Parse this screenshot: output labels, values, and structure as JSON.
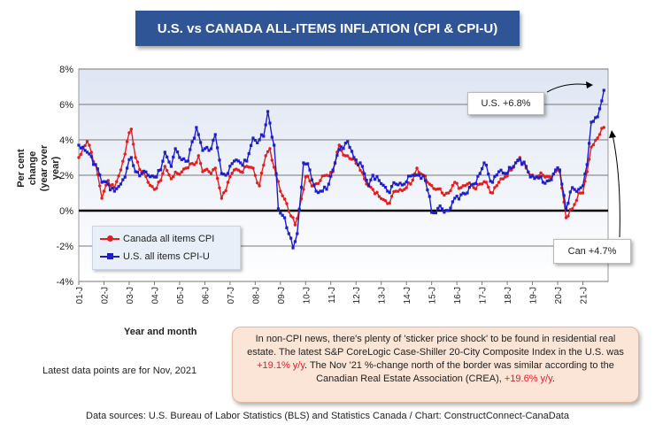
{
  "title": "U.S. vs CANADA ALL-ITEMS INFLATION (CPI & CPI-U)",
  "y_axis_title_line1": "Per cent change",
  "y_axis_title_line2": "(year over year)",
  "x_axis_title": "Year and month",
  "legend": {
    "canada": "Canada all items CPI",
    "us": "U.S. all items CPI-U"
  },
  "callouts": {
    "us": "U.S. +6.8%",
    "can": "Can +4.7%"
  },
  "note": {
    "part1": "In non-CPI news, there's plenty of 'sticker price shock' to be found in residential real estate. The latest S&P CoreLogic Case-Shiller 20-City Composite Index in the U.S. was ",
    "us_value": "+19.1% y/y",
    "part2": ". The Nov '21 %-change north of the border was similar according to the Canadian Real Estate Association (CREA), ",
    "can_value": "+19.6% y/y",
    "part3": "."
  },
  "latest_text": "Latest data points are for Nov, 2021",
  "sources": "Data sources: U.S. Bureau of Labor Statistics (BLS) and Statistics Canada / Chart: ConstructConnect-CanaData",
  "colors": {
    "canada": "#e02020",
    "us": "#1f1fc8",
    "title_bg": "#2f5597",
    "note_bg": "#fbe5d6"
  },
  "chart_data": {
    "type": "line",
    "title": "U.S. vs CANADA ALL-ITEMS INFLATION (CPI & CPI-U)",
    "xlabel": "Year and month",
    "ylabel": "Per cent change (year over year)",
    "ylim": [
      -4,
      8
    ],
    "y_ticks": [
      "-4%",
      "-2%",
      "0%",
      "2%",
      "4%",
      "6%",
      "8%"
    ],
    "y_tick_values": [
      -4,
      -2,
      0,
      2,
      4,
      6,
      8
    ],
    "x_tick_labels": [
      "01-J",
      "02-J",
      "03-J",
      "04-J",
      "05-J",
      "06-J",
      "07-J",
      "08-J",
      "09-J",
      "10-J",
      "11-J",
      "12-J",
      "13-J",
      "14-J",
      "15-J",
      "16-J",
      "17-J",
      "18-J",
      "19-J",
      "20-J",
      "21-J"
    ],
    "x_start": "2001-01",
    "x_end": "2021-11",
    "grid": true,
    "legend_position": "bottom-left",
    "series": [
      {
        "name": "Canada all items CPI",
        "color": "#e02020",
        "marker": "circle",
        "keypoints": [
          [
            "2001-01",
            3.0
          ],
          [
            "2001-05",
            3.9
          ],
          [
            "2001-09",
            2.6
          ],
          [
            "2001-12",
            0.7
          ],
          [
            "2002-03",
            1.7
          ],
          [
            "2002-06",
            1.3
          ],
          [
            "2002-09",
            2.3
          ],
          [
            "2002-12",
            3.9
          ],
          [
            "2003-02",
            4.6
          ],
          [
            "2003-04",
            3.0
          ],
          [
            "2003-07",
            2.2
          ],
          [
            "2003-10",
            1.6
          ],
          [
            "2004-01",
            1.2
          ],
          [
            "2004-04",
            1.7
          ],
          [
            "2004-06",
            2.5
          ],
          [
            "2004-09",
            1.8
          ],
          [
            "2004-12",
            2.1
          ],
          [
            "2005-04",
            2.4
          ],
          [
            "2005-08",
            2.6
          ],
          [
            "2005-10",
            3.1
          ],
          [
            "2005-12",
            2.2
          ],
          [
            "2006-03",
            2.2
          ],
          [
            "2006-06",
            2.4
          ],
          [
            "2006-09",
            0.7
          ],
          [
            "2006-12",
            1.6
          ],
          [
            "2007-03",
            2.3
          ],
          [
            "2007-06",
            2.2
          ],
          [
            "2007-09",
            2.5
          ],
          [
            "2007-12",
            2.4
          ],
          [
            "2008-03",
            1.4
          ],
          [
            "2008-06",
            3.1
          ],
          [
            "2008-08",
            3.5
          ],
          [
            "2008-11",
            2.0
          ],
          [
            "2009-01",
            1.1
          ],
          [
            "2009-04",
            0.4
          ],
          [
            "2009-06",
            -0.3
          ],
          [
            "2009-08",
            -0.8
          ],
          [
            "2009-10",
            0.1
          ],
          [
            "2010-01",
            1.9
          ],
          [
            "2010-05",
            1.4
          ],
          [
            "2010-08",
            1.7
          ],
          [
            "2010-11",
            2.0
          ],
          [
            "2011-02",
            2.2
          ],
          [
            "2011-05",
            3.7
          ],
          [
            "2011-08",
            3.1
          ],
          [
            "2011-11",
            2.9
          ],
          [
            "2012-02",
            2.6
          ],
          [
            "2012-06",
            1.5
          ],
          [
            "2012-09",
            1.2
          ],
          [
            "2012-12",
            0.8
          ],
          [
            "2013-04",
            0.4
          ],
          [
            "2013-08",
            1.1
          ],
          [
            "2013-12",
            1.2
          ],
          [
            "2014-03",
            1.5
          ],
          [
            "2014-06",
            2.4
          ],
          [
            "2014-09",
            2.0
          ],
          [
            "2014-12",
            1.5
          ],
          [
            "2015-03",
            1.2
          ],
          [
            "2015-06",
            1.0
          ],
          [
            "2015-09",
            1.0
          ],
          [
            "2015-12",
            1.6
          ],
          [
            "2016-03",
            1.3
          ],
          [
            "2016-06",
            1.5
          ],
          [
            "2016-09",
            1.3
          ],
          [
            "2016-12",
            1.5
          ],
          [
            "2017-03",
            1.6
          ],
          [
            "2017-06",
            1.0
          ],
          [
            "2017-09",
            1.6
          ],
          [
            "2017-12",
            1.9
          ],
          [
            "2018-03",
            2.3
          ],
          [
            "2018-07",
            3.0
          ],
          [
            "2018-10",
            2.4
          ],
          [
            "2018-12",
            2.0
          ],
          [
            "2019-03",
            1.9
          ],
          [
            "2019-06",
            2.0
          ],
          [
            "2019-09",
            1.9
          ],
          [
            "2019-12",
            2.2
          ],
          [
            "2020-02",
            2.2
          ],
          [
            "2020-05",
            -0.4
          ],
          [
            "2020-08",
            0.1
          ],
          [
            "2020-11",
            1.0
          ],
          [
            "2021-01",
            1.0
          ],
          [
            "2021-03",
            2.2
          ],
          [
            "2021-05",
            3.6
          ],
          [
            "2021-08",
            4.1
          ],
          [
            "2021-11",
            4.7
          ]
        ]
      },
      {
        "name": "U.S. all items CPI-U",
        "color": "#1f1fc8",
        "marker": "square",
        "keypoints": [
          [
            "2001-01",
            3.7
          ],
          [
            "2001-06",
            3.2
          ],
          [
            "2001-09",
            2.6
          ],
          [
            "2001-12",
            1.6
          ],
          [
            "2002-03",
            1.5
          ],
          [
            "2002-06",
            1.1
          ],
          [
            "2002-09",
            1.5
          ],
          [
            "2002-12",
            2.4
          ],
          [
            "2003-02",
            3.0
          ],
          [
            "2003-04",
            2.2
          ],
          [
            "2003-07",
            2.1
          ],
          [
            "2003-10",
            2.0
          ],
          [
            "2004-01",
            1.9
          ],
          [
            "2004-04",
            2.3
          ],
          [
            "2004-06",
            3.3
          ],
          [
            "2004-09",
            2.5
          ],
          [
            "2004-11",
            3.5
          ],
          [
            "2005-01",
            3.0
          ],
          [
            "2005-05",
            2.8
          ],
          [
            "2005-09",
            4.7
          ],
          [
            "2005-12",
            3.4
          ],
          [
            "2006-03",
            3.4
          ],
          [
            "2006-06",
            4.3
          ],
          [
            "2006-09",
            2.1
          ],
          [
            "2006-11",
            2.0
          ],
          [
            "2007-03",
            2.8
          ],
          [
            "2007-06",
            2.7
          ],
          [
            "2007-09",
            2.8
          ],
          [
            "2007-12",
            4.1
          ],
          [
            "2008-03",
            4.0
          ],
          [
            "2008-05",
            4.2
          ],
          [
            "2008-07",
            5.6
          ],
          [
            "2008-10",
            3.7
          ],
          [
            "2008-12",
            0.1
          ],
          [
            "2009-03",
            -0.4
          ],
          [
            "2009-05",
            -1.3
          ],
          [
            "2009-07",
            -2.1
          ],
          [
            "2009-09",
            -1.3
          ],
          [
            "2009-12",
            2.7
          ],
          [
            "2010-03",
            2.3
          ],
          [
            "2010-06",
            1.1
          ],
          [
            "2010-09",
            1.1
          ],
          [
            "2010-12",
            1.5
          ],
          [
            "2011-03",
            2.7
          ],
          [
            "2011-06",
            3.6
          ],
          [
            "2011-09",
            3.9
          ],
          [
            "2011-12",
            3.0
          ],
          [
            "2012-03",
            2.7
          ],
          [
            "2012-07",
            1.4
          ],
          [
            "2012-09",
            2.0
          ],
          [
            "2012-12",
            1.7
          ],
          [
            "2013-04",
            1.1
          ],
          [
            "2013-08",
            1.5
          ],
          [
            "2013-12",
            1.5
          ],
          [
            "2014-04",
            2.0
          ],
          [
            "2014-07",
            2.0
          ],
          [
            "2014-10",
            1.7
          ],
          [
            "2014-12",
            0.8
          ],
          [
            "2015-01",
            -0.1
          ],
          [
            "2015-06",
            0.1
          ],
          [
            "2015-09",
            0.0
          ],
          [
            "2015-12",
            0.7
          ],
          [
            "2016-03",
            0.9
          ],
          [
            "2016-06",
            1.0
          ],
          [
            "2016-09",
            1.5
          ],
          [
            "2016-12",
            2.1
          ],
          [
            "2017-02",
            2.7
          ],
          [
            "2017-06",
            1.6
          ],
          [
            "2017-09",
            2.2
          ],
          [
            "2017-12",
            2.1
          ],
          [
            "2018-03",
            2.4
          ],
          [
            "2018-07",
            2.9
          ],
          [
            "2018-10",
            2.5
          ],
          [
            "2018-12",
            1.9
          ],
          [
            "2019-03",
            1.9
          ],
          [
            "2019-06",
            1.6
          ],
          [
            "2019-09",
            1.7
          ],
          [
            "2019-12",
            2.3
          ],
          [
            "2020-02",
            2.3
          ],
          [
            "2020-05",
            0.1
          ],
          [
            "2020-08",
            1.3
          ],
          [
            "2020-11",
            1.2
          ],
          [
            "2021-01",
            1.4
          ],
          [
            "2021-03",
            2.6
          ],
          [
            "2021-05",
            5.0
          ],
          [
            "2021-08",
            5.3
          ],
          [
            "2021-10",
            6.2
          ],
          [
            "2021-11",
            6.8
          ]
        ]
      }
    ]
  }
}
